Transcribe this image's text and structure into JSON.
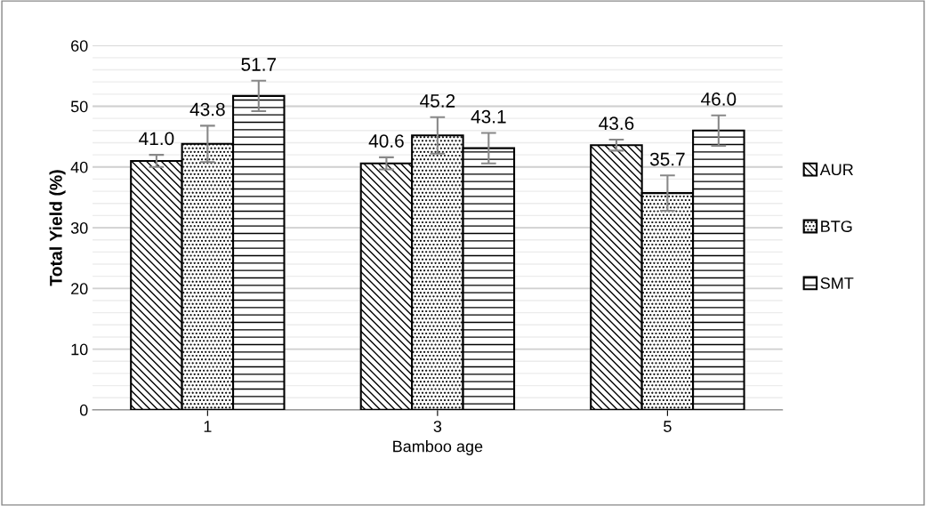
{
  "chart_data": {
    "type": "bar",
    "xlabel": "Bamboo age",
    "ylabel": "Total Yield (%)",
    "categories": [
      "1",
      "3",
      "5"
    ],
    "series": [
      {
        "name": "AUR",
        "color": "#000000",
        "values": [
          41.0,
          40.6,
          43.6
        ],
        "errors": [
          1.0,
          1.0,
          0.9
        ],
        "value_labels": [
          "41.0",
          "40.6",
          "43.6"
        ]
      },
      {
        "name": "BTG",
        "color": "#000000",
        "values": [
          43.8,
          45.2,
          35.7
        ],
        "errors": [
          3.0,
          3.0,
          2.9
        ],
        "value_labels": [
          "43.8",
          "45.2",
          "35.7"
        ]
      },
      {
        "name": "SMT",
        "color": "#000000",
        "values": [
          51.7,
          43.1,
          46.0
        ],
        "errors": [
          2.5,
          2.5,
          2.5
        ],
        "value_labels": [
          "51.7",
          "43.1",
          "46.0"
        ]
      }
    ],
    "ylim": [
      0,
      60
    ],
    "yticks": [
      0,
      10,
      20,
      30,
      40,
      50,
      60
    ],
    "grid": "y",
    "legend": "right"
  }
}
